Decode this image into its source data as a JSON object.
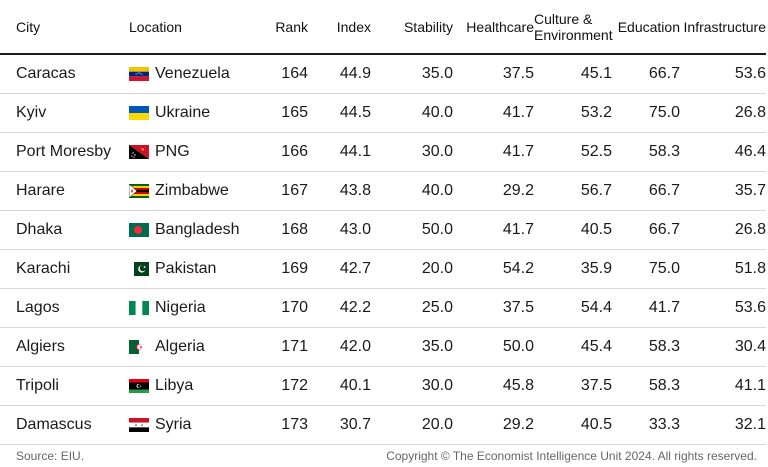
{
  "headers": {
    "city": "City",
    "location": "Location",
    "rank": "Rank",
    "index": "Index",
    "stability": "Stability",
    "healthcare": "Healthcare",
    "culture_line1": "Culture &",
    "culture_line2": "Environment",
    "education": "Education",
    "infrastructure": "Infrastructure"
  },
  "rows": [
    {
      "city": "Caracas",
      "location": "Venezuela",
      "flag": "flag-venezuela-icon",
      "rank": "164",
      "index": "44.9",
      "stability": "35.0",
      "healthcare": "37.5",
      "culture": "45.1",
      "education": "66.7",
      "infrastructure": "53.6"
    },
    {
      "city": "Kyiv",
      "location": "Ukraine",
      "flag": "flag-ukraine-icon",
      "rank": "165",
      "index": "44.5",
      "stability": "40.0",
      "healthcare": "41.7",
      "culture": "53.2",
      "education": "75.0",
      "infrastructure": "26.8"
    },
    {
      "city": "Port Moresby",
      "location": "PNG",
      "flag": "flag-png-icon",
      "rank": "166",
      "index": "44.1",
      "stability": "30.0",
      "healthcare": "41.7",
      "culture": "52.5",
      "education": "58.3",
      "infrastructure": "46.4"
    },
    {
      "city": "Harare",
      "location": "Zimbabwe",
      "flag": "flag-zimbabwe-icon",
      "rank": "167",
      "index": "43.8",
      "stability": "40.0",
      "healthcare": "29.2",
      "culture": "56.7",
      "education": "66.7",
      "infrastructure": "35.7"
    },
    {
      "city": "Dhaka",
      "location": "Bangladesh",
      "flag": "flag-bangladesh-icon",
      "rank": "168",
      "index": "43.0",
      "stability": "50.0",
      "healthcare": "41.7",
      "culture": "40.5",
      "education": "66.7",
      "infrastructure": "26.8"
    },
    {
      "city": "Karachi",
      "location": "Pakistan",
      "flag": "flag-pakistan-icon",
      "rank": "169",
      "index": "42.7",
      "stability": "20.0",
      "healthcare": "54.2",
      "culture": "35.9",
      "education": "75.0",
      "infrastructure": "51.8"
    },
    {
      "city": "Lagos",
      "location": "Nigeria",
      "flag": "flag-nigeria-icon",
      "rank": "170",
      "index": "42.2",
      "stability": "25.0",
      "healthcare": "37.5",
      "culture": "54.4",
      "education": "41.7",
      "infrastructure": "53.6"
    },
    {
      "city": "Algiers",
      "location": "Algeria",
      "flag": "flag-algeria-icon",
      "rank": "171",
      "index": "42.0",
      "stability": "35.0",
      "healthcare": "50.0",
      "culture": "45.4",
      "education": "58.3",
      "infrastructure": "30.4"
    },
    {
      "city": "Tripoli",
      "location": "Libya",
      "flag": "flag-libya-icon",
      "rank": "172",
      "index": "40.1",
      "stability": "30.0",
      "healthcare": "45.8",
      "culture": "37.5",
      "education": "58.3",
      "infrastructure": "41.1"
    },
    {
      "city": "Damascus",
      "location": "Syria",
      "flag": "flag-syria-icon",
      "rank": "173",
      "index": "30.7",
      "stability": "20.0",
      "healthcare": "29.2",
      "culture": "40.5",
      "education": "33.3",
      "infrastructure": "32.1"
    }
  ],
  "footer": {
    "source": "Source: EIU.",
    "copyright": "Copyright © The Economist Intelligence Unit 2024. All rights reserved."
  }
}
